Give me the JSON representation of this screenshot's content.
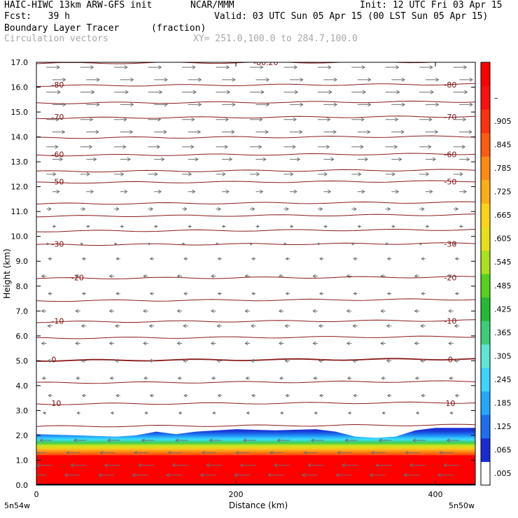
{
  "header": {
    "model": "HAIC-HIWC 13km ARW-GFS init",
    "org": "NCAR/MMM",
    "init": "Init: 12 UTC Fri 03 Apr 15",
    "fcst": "Fcst:   39 h",
    "valid": "Valid: 03 UTC Sun 05 Apr 15 (00 LST Sun 05 Apr 15)",
    "field": "Boundary Layer Tracer",
    "units": "(fraction)",
    "overlay": "Circulation vectors",
    "xy": "XY= 251.0,100.0 to 284.7,100.0"
  },
  "chart_data": {
    "type": "heatmap",
    "xlabel": "Distance (km)",
    "ylabel": "Height (km)",
    "xlim": [
      0,
      440
    ],
    "ylim": [
      0,
      17
    ],
    "x_ticks": [
      "0",
      "200",
      "400"
    ],
    "x_end_labels": [
      "5n54w",
      "5n50w"
    ],
    "y_ticks": [
      "0.0",
      "1.0",
      "2.0",
      "3.0",
      "4.0",
      "5.0",
      "6.0",
      "7.0",
      "8.0",
      "9.0",
      "10.0",
      "11.0",
      "12.0",
      "13.0",
      "14.0",
      "15.0",
      "16.0",
      "17.0"
    ],
    "colorbar": {
      "labels": [
        ".005",
        ".065",
        ".125",
        ".185",
        ".245",
        ".305",
        ".365",
        ".425",
        ".485",
        ".545",
        ".605",
        ".665",
        ".725",
        ".785",
        ".845",
        ".905",
        "–"
      ],
      "colors": [
        "#ffffff",
        "#1a2bd6",
        "#1e6ef0",
        "#22a8ff",
        "#3cd4ff",
        "#5ee6d2",
        "#3ccc7a",
        "#22bb33",
        "#55d11e",
        "#a9e21a",
        "#e6e01a",
        "#ffd21a",
        "#ffae16",
        "#ff8a12",
        "#ff5a10",
        "#ff300e",
        "#ff1010",
        "#ff0000"
      ]
    },
    "tracer_top_km": [
      [
        0,
        2.05
      ],
      [
        40,
        2.0
      ],
      [
        80,
        1.95
      ],
      [
        100,
        2.0
      ],
      [
        120,
        2.15
      ],
      [
        140,
        2.05
      ],
      [
        160,
        2.15
      ],
      [
        200,
        2.25
      ],
      [
        240,
        2.2
      ],
      [
        280,
        2.25
      ],
      [
        300,
        2.15
      ],
      [
        320,
        1.95
      ],
      [
        340,
        1.9
      ],
      [
        360,
        1.95
      ],
      [
        380,
        2.2
      ],
      [
        400,
        2.3
      ],
      [
        440,
        2.3
      ]
    ],
    "red_core_top_km": 1.2,
    "temperature_contours": [
      {
        "label": "10",
        "height_km": 3.3
      },
      {
        "label": "0",
        "height_km": 5.05
      },
      {
        "label": "-10",
        "height_km": 6.6
      },
      {
        "label": "-20",
        "height_km": 8.35
      },
      {
        "label": "-30",
        "height_km": 9.7
      },
      {
        "label": "-50",
        "height_km": 12.2
      },
      {
        "label": "-60",
        "height_km": 13.3
      },
      {
        "label": "-70",
        "height_km": 14.8
      },
      {
        "label": "-80",
        "height_km": 16.1
      },
      {
        "label": "-80.20",
        "height_km": 17.0
      }
    ],
    "unlabeled_contours_km": [
      2.4,
      4.15,
      5.95,
      7.45,
      10.25,
      10.85,
      11.35,
      12.65,
      14.0,
      15.4
    ],
    "wind_profile": [
      {
        "height_km": 0.4,
        "u": -1.0
      },
      {
        "height_km": 0.8,
        "u": -1.0
      },
      {
        "height_km": 1.3,
        "u": -0.9
      },
      {
        "height_km": 1.8,
        "u": -0.8
      },
      {
        "height_km": 2.9,
        "u": -0.2
      },
      {
        "height_km": 3.6,
        "u": -0.25
      },
      {
        "height_km": 4.3,
        "u": -0.25
      },
      {
        "height_km": 5.0,
        "u": -0.3
      },
      {
        "height_km": 5.7,
        "u": -0.3
      },
      {
        "height_km": 6.4,
        "u": -0.3
      },
      {
        "height_km": 7.0,
        "u": -0.3
      },
      {
        "height_km": 7.7,
        "u": -0.25
      },
      {
        "height_km": 8.4,
        "u": -0.3
      },
      {
        "height_km": 9.1,
        "u": -0.25
      },
      {
        "height_km": 9.7,
        "u": 0.15
      },
      {
        "height_km": 10.4,
        "u": 0.2
      },
      {
        "height_km": 11.1,
        "u": 0.3
      },
      {
        "height_km": 11.8,
        "u": 0.45
      },
      {
        "height_km": 12.5,
        "u": 0.6
      },
      {
        "height_km": 13.1,
        "u": 0.65
      },
      {
        "height_km": 13.6,
        "u": 0.75
      },
      {
        "height_km": 14.2,
        "u": 0.8
      },
      {
        "height_km": 14.7,
        "u": 0.8
      },
      {
        "height_km": 15.3,
        "u": 0.85
      },
      {
        "height_km": 15.8,
        "u": 0.9
      },
      {
        "height_km": 16.3,
        "u": 0.85
      },
      {
        "height_km": 16.8,
        "u": 0.85
      }
    ]
  }
}
